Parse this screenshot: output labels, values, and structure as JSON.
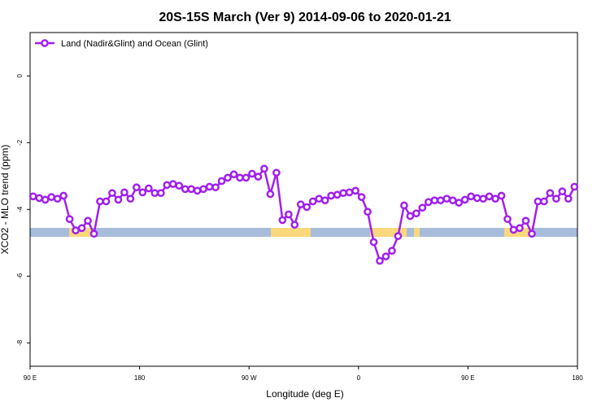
{
  "chart_data": {
    "type": "line",
    "title": "20S-15S March (Ver 9)   2014-09-06 to 2020-01-21",
    "x_label": "Longitude (deg E)",
    "y_label": "XCO2 - MLO trend (ppm)",
    "xlim": [
      90,
      540
    ],
    "xticks": [
      {
        "value": 90,
        "label": "90 E"
      },
      {
        "value": 180,
        "label": "180"
      },
      {
        "value": 270,
        "label": "90 W"
      },
      {
        "value": 360,
        "label": "0"
      },
      {
        "value": 450,
        "label": "90 E"
      },
      {
        "value": 540,
        "label": "180"
      }
    ],
    "ylim": [
      -8.7,
      1.3
    ],
    "yticks": [
      0,
      -2,
      -4,
      -6,
      -8
    ],
    "legend": "top-left",
    "x": [
      92.5,
      97.5,
      102.5,
      107.5,
      112.5,
      117.5,
      122.5,
      127.5,
      132.5,
      137.5,
      142.5,
      147.5,
      152.5,
      157.5,
      162.5,
      167.5,
      172.5,
      177.5,
      182.5,
      187.5,
      192.5,
      197.5,
      202.5,
      207.5,
      212.5,
      217.5,
      222.5,
      227.5,
      232.5,
      237.5,
      242.5,
      247.5,
      252.5,
      257.5,
      262.5,
      267.5,
      272.5,
      277.5,
      282.5,
      287.5,
      292.5,
      297.5,
      302.5,
      307.5,
      312.5,
      317.5,
      322.5,
      327.5,
      332.5,
      337.5,
      342.5,
      347.5,
      352.5,
      357.5,
      362.5,
      367.5,
      372.5,
      377.5,
      382.5,
      387.5,
      392.5,
      397.5,
      402.5,
      407.5,
      412.5,
      417.5,
      422.5,
      427.5,
      432.5,
      437.5,
      442.5,
      447.5,
      452.5,
      457.5,
      462.5,
      467.5,
      472.5,
      477.5,
      482.5,
      487.5,
      492.5,
      497.5,
      502.5,
      507.5,
      512.5,
      517.5,
      522.5,
      527.5,
      532.5,
      537.5
    ],
    "series": [
      {
        "name": "Land (Nadir&Glint) and Ocean (Glint)",
        "color": "#a020f0",
        "values": [
          -3.61,
          -3.66,
          -3.71,
          -3.63,
          -3.68,
          -3.59,
          -4.29,
          -4.63,
          -4.56,
          -4.34,
          -4.73,
          -3.76,
          -3.76,
          -3.51,
          -3.71,
          -3.49,
          -3.68,
          -3.34,
          -3.49,
          -3.37,
          -3.51,
          -3.51,
          -3.27,
          -3.24,
          -3.29,
          -3.39,
          -3.39,
          -3.44,
          -3.39,
          -3.32,
          -3.34,
          -3.15,
          -3.05,
          -2.95,
          -3.05,
          -3.05,
          -2.93,
          -3.02,
          -2.78,
          -3.54,
          -2.9,
          -4.32,
          -4.15,
          -4.46,
          -3.85,
          -3.93,
          -3.76,
          -3.68,
          -3.73,
          -3.59,
          -3.56,
          -3.51,
          -3.49,
          -3.44,
          -3.63,
          -4.07,
          -4.98,
          -5.54,
          -5.41,
          -5.24,
          -4.8,
          -3.88,
          -4.2,
          -4.12,
          -3.95,
          -3.78,
          -3.73,
          -3.73,
          -3.68,
          -3.73,
          -3.8,
          -3.71,
          -3.61,
          -3.66,
          -3.68,
          -3.61,
          -3.68,
          -3.59,
          -4.29,
          -4.61,
          -4.56,
          -4.34,
          -4.73,
          -3.76,
          -3.76,
          -3.51,
          -3.68,
          -3.46,
          -3.68,
          -3.32
        ]
      }
    ]
  }
}
